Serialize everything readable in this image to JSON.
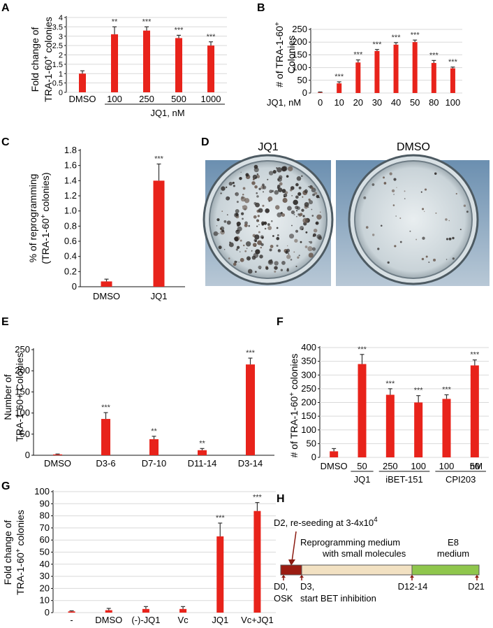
{
  "colors": {
    "bar": "#e8231b",
    "error": "#333333",
    "grid": "#d9d9d9",
    "timeline_dark": "#9b1c12",
    "timeline_mid": "#f2e1c2",
    "timeline_green": "#8fc64c",
    "arrow": "#8b1a10"
  },
  "chart_data": [
    {
      "panel": "A",
      "type": "bar",
      "ylabel_line1": "Fold change of",
      "ylabel_line2": "TRA-1-60",
      "ylabel_sup": "+",
      "ylabel_tail": " colonies",
      "ylim": [
        0,
        4
      ],
      "ytick_step": 0.5,
      "ytick_labels": [
        "0",
        "0.5",
        "1",
        "1.5",
        "2",
        "2.5",
        "3",
        "3.5",
        "4"
      ],
      "categories": [
        "DMSO",
        "100",
        "250",
        "500",
        "1000"
      ],
      "values": [
        1.0,
        3.1,
        3.3,
        2.9,
        2.5
      ],
      "errors": [
        0.15,
        0.4,
        0.2,
        0.15,
        0.2
      ],
      "significance": [
        "",
        "**",
        "***",
        "***",
        "***"
      ],
      "group_label": "JQ1, nM",
      "grid": true
    },
    {
      "panel": "B",
      "type": "bar",
      "ylabel_line1": "# of TRA-1-60",
      "ylabel_sup": "+",
      "ylabel_line2": "Colonies",
      "ylim": [
        0,
        250
      ],
      "ytick_step": 50,
      "ytick_labels": [
        "0",
        "50",
        "100",
        "150",
        "200",
        "250"
      ],
      "x_prefix": "JQ1, nM",
      "categories": [
        "0",
        "10",
        "20",
        "30",
        "40",
        "50",
        "80",
        "100"
      ],
      "values": [
        2,
        38,
        120,
        165,
        190,
        200,
        118,
        97
      ],
      "errors": [
        2,
        6,
        10,
        6,
        8,
        8,
        10,
        5
      ],
      "significance": [
        "",
        "***",
        "***",
        "***",
        "***",
        "***",
        "***",
        "***"
      ],
      "grid": true
    },
    {
      "panel": "C",
      "type": "bar",
      "ylabel_line1": "% of reprogramming",
      "ylabel_line2": "(TRA-1-60",
      "ylabel_sup": "+",
      "ylabel_tail": " colonies)",
      "ylim": [
        0,
        1.8
      ],
      "ytick_step": 0.2,
      "ytick_labels": [
        "0",
        "0.2",
        "0.4",
        "0.6",
        "0.8",
        "1.0",
        "1.2",
        "1.4",
        "1.6",
        "1.8"
      ],
      "categories": [
        "DMSO",
        "JQ1"
      ],
      "values": [
        0.07,
        1.4
      ],
      "errors": [
        0.03,
        0.22
      ],
      "significance": [
        "",
        "***"
      ],
      "grid": false
    },
    {
      "panel": "E",
      "type": "bar",
      "ylabel_line1": "Number of",
      "ylabel_line2": "TRA-1-60+ Colonies",
      "ylim": [
        0,
        250
      ],
      "ytick_step": 50,
      "ytick_labels": [
        "0",
        "50",
        "100",
        "150",
        "200",
        "250"
      ],
      "categories": [
        "DMSO",
        "D3-6",
        "D7-10",
        "D11-14",
        "D3-14"
      ],
      "values": [
        2,
        86,
        38,
        12,
        215
      ],
      "errors": [
        1,
        15,
        7,
        4,
        15
      ],
      "significance": [
        "",
        "***",
        "**",
        "**",
        "***"
      ],
      "grid": false
    },
    {
      "panel": "F",
      "type": "bar",
      "ylabel_line1": "# of TRA-1-60",
      "ylabel_sup": "+",
      "ylabel_tail": " colonies",
      "ylim": [
        0,
        400
      ],
      "ytick_step": 50,
      "ytick_labels": [
        "0",
        "50",
        "100",
        "150",
        "200",
        "250",
        "300",
        "350",
        "400"
      ],
      "categories": [
        "DMSO",
        "50",
        "250",
        "100",
        "100",
        "50"
      ],
      "unit_label": "nM",
      "groups": [
        {
          "label": "JQ1",
          "from": 1,
          "to": 1
        },
        {
          "label": "iBET-151",
          "from": 2,
          "to": 3
        },
        {
          "label": "CPI203",
          "from": 4,
          "to": 5
        }
      ],
      "values": [
        22,
        340,
        228,
        200,
        213,
        335
      ],
      "errors": [
        10,
        35,
        22,
        25,
        15,
        20
      ],
      "significance": [
        "",
        "***",
        "***",
        "***",
        "***",
        "***"
      ],
      "grid": true
    },
    {
      "panel": "G",
      "type": "bar",
      "ylabel_line1": "Fold change of",
      "ylabel_line2": "TRA-1-60",
      "ylabel_sup": "+",
      "ylabel_tail": " colonies",
      "ylim": [
        0,
        100
      ],
      "ytick_step": 10,
      "ytick_labels": [
        "0",
        "10",
        "20",
        "30",
        "40",
        "50",
        "60",
        "70",
        "80",
        "90",
        "100"
      ],
      "categories": [
        "-",
        "DMSO",
        "(-)-JQ1",
        "Vc",
        "JQ1",
        "Vc+JQ1"
      ],
      "values": [
        1,
        2,
        3,
        3,
        63,
        84
      ],
      "errors": [
        0.5,
        1.5,
        2,
        2,
        11,
        7
      ],
      "significance": [
        "",
        "",
        "",
        "",
        "***",
        "***"
      ],
      "grid": true
    }
  ],
  "photos": {
    "panel": "D",
    "left_label": "JQ1",
    "right_label": "DMSO"
  },
  "timeline": {
    "panel": "H",
    "top_label": "D2, re-seeding at 3-4x10",
    "top_label_sup": "4",
    "mid_line1": "Reprogramming medium",
    "mid_line2": "with small molecules",
    "e8_line1": "E8",
    "e8_line2": "medium",
    "d0_line1": "D0,",
    "d0_line2": "OSK",
    "d3_line1": "D3,",
    "d3_line2": "start BET inhibition",
    "d12": "D12-14",
    "d21": "D21"
  }
}
